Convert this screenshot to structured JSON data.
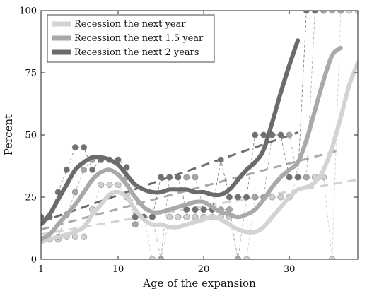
{
  "chart_data": {
    "type": "line",
    "xlabel": "Age of the expansion",
    "ylabel": "Percent",
    "xlim": [
      1,
      38
    ],
    "ylim": [
      0,
      100
    ],
    "x_ticks": [
      1,
      10,
      20,
      30
    ],
    "y_ticks": [
      0,
      25,
      50,
      75,
      100
    ],
    "legend_position": "top-left",
    "series": [
      {
        "name": "Recession the next year",
        "color": "#d3d3d3",
        "marker_color": "#d0d0d0",
        "trend_color": "#d3d3d3",
        "trend": [
          [
            1,
            10
          ],
          [
            38,
            32
          ]
        ],
        "smooth": [
          [
            1,
            7
          ],
          [
            3,
            9
          ],
          [
            5,
            11
          ],
          [
            6,
            13
          ],
          [
            7,
            18
          ],
          [
            8,
            22
          ],
          [
            9,
            26
          ],
          [
            10,
            27
          ],
          [
            11,
            25
          ],
          [
            12,
            20
          ],
          [
            13,
            16
          ],
          [
            14,
            14
          ],
          [
            15,
            14
          ],
          [
            16,
            13
          ],
          [
            17,
            13
          ],
          [
            18,
            14
          ],
          [
            19,
            15
          ],
          [
            20,
            16
          ],
          [
            21,
            17
          ],
          [
            22,
            16
          ],
          [
            23,
            14
          ],
          [
            24,
            12
          ],
          [
            25,
            11
          ],
          [
            26,
            11
          ],
          [
            27,
            13
          ],
          [
            28,
            17
          ],
          [
            29,
            21
          ],
          [
            30,
            25
          ],
          [
            31,
            28
          ],
          [
            32,
            29
          ],
          [
            33,
            31
          ],
          [
            34,
            36
          ],
          [
            35,
            45
          ],
          [
            36,
            57
          ],
          [
            37,
            70
          ],
          [
            38,
            79
          ]
        ],
        "points": [
          [
            1,
            8
          ],
          [
            2,
            8
          ],
          [
            3,
            8
          ],
          [
            4,
            9
          ],
          [
            5,
            9
          ],
          [
            6,
            9
          ],
          [
            7,
            20
          ],
          [
            8,
            30
          ],
          [
            9,
            30
          ],
          [
            10,
            30
          ],
          [
            11,
            25
          ],
          [
            12,
            17
          ],
          [
            13,
            17
          ],
          [
            14,
            0
          ],
          [
            15,
            0
          ],
          [
            16,
            17
          ],
          [
            17,
            17
          ],
          [
            18,
            17
          ],
          [
            19,
            17
          ],
          [
            20,
            17
          ],
          [
            21,
            17
          ],
          [
            22,
            17
          ],
          [
            23,
            17
          ],
          [
            24,
            0
          ],
          [
            25,
            0
          ],
          [
            26,
            25
          ],
          [
            27,
            25
          ],
          [
            28,
            25
          ],
          [
            29,
            25
          ],
          [
            30,
            25
          ],
          [
            31,
            33
          ],
          [
            32,
            33
          ],
          [
            33,
            33
          ],
          [
            34,
            33
          ],
          [
            35,
            0
          ],
          [
            36,
            100
          ],
          [
            37,
            100
          ],
          [
            38,
            100
          ]
        ]
      },
      {
        "name": "Recession the next 1.5 year",
        "color": "#a9a9a9",
        "marker_color": "#a6a6a6",
        "trend_color": "#a9a9a9",
        "trend": [
          [
            1,
            12
          ],
          [
            36,
            44
          ]
        ],
        "smooth": [
          [
            1,
            8
          ],
          [
            2,
            10
          ],
          [
            3,
            14
          ],
          [
            4,
            18
          ],
          [
            5,
            22
          ],
          [
            6,
            27
          ],
          [
            7,
            32
          ],
          [
            8,
            35
          ],
          [
            9,
            36
          ],
          [
            10,
            34
          ],
          [
            11,
            30
          ],
          [
            12,
            25
          ],
          [
            13,
            21
          ],
          [
            14,
            19
          ],
          [
            15,
            19
          ],
          [
            16,
            20
          ],
          [
            17,
            21
          ],
          [
            18,
            22
          ],
          [
            19,
            23
          ],
          [
            20,
            23
          ],
          [
            21,
            21
          ],
          [
            22,
            19
          ],
          [
            23,
            18
          ],
          [
            24,
            17
          ],
          [
            25,
            18
          ],
          [
            26,
            20
          ],
          [
            27,
            24
          ],
          [
            28,
            29
          ],
          [
            29,
            33
          ],
          [
            30,
            36
          ],
          [
            31,
            39
          ],
          [
            32,
            48
          ],
          [
            33,
            60
          ],
          [
            34,
            72
          ],
          [
            35,
            82
          ],
          [
            36,
            85
          ]
        ],
        "points": [
          [
            1,
            8
          ],
          [
            2,
            8
          ],
          [
            3,
            9
          ],
          [
            4,
            18
          ],
          [
            5,
            27
          ],
          [
            6,
            36
          ],
          [
            7,
            40
          ],
          [
            8,
            40
          ],
          [
            9,
            40
          ],
          [
            10,
            40
          ],
          [
            11,
            33
          ],
          [
            12,
            14
          ],
          [
            13,
            17
          ],
          [
            14,
            17
          ],
          [
            15,
            0
          ],
          [
            16,
            33
          ],
          [
            17,
            33
          ],
          [
            18,
            33
          ],
          [
            19,
            33
          ],
          [
            20,
            20
          ],
          [
            21,
            20
          ],
          [
            22,
            20
          ],
          [
            23,
            20
          ],
          [
            24,
            0
          ],
          [
            25,
            25
          ],
          [
            26,
            25
          ],
          [
            27,
            25
          ],
          [
            28,
            50
          ],
          [
            29,
            50
          ],
          [
            30,
            50
          ],
          [
            31,
            33
          ],
          [
            32,
            33
          ],
          [
            33,
            100
          ],
          [
            34,
            100
          ],
          [
            35,
            100
          ],
          [
            36,
            100
          ]
        ]
      },
      {
        "name": "Recession the next 2 years",
        "color": "#6b6b6b",
        "marker_color": "#707070",
        "trend_color": "#6b6b6b",
        "trend": [
          [
            1,
            15
          ],
          [
            31,
            51
          ]
        ],
        "smooth": [
          [
            1,
            14
          ],
          [
            2,
            18
          ],
          [
            3,
            24
          ],
          [
            4,
            30
          ],
          [
            5,
            36
          ],
          [
            6,
            39
          ],
          [
            7,
            41
          ],
          [
            8,
            41
          ],
          [
            9,
            40
          ],
          [
            10,
            38
          ],
          [
            11,
            34
          ],
          [
            12,
            30
          ],
          [
            13,
            28
          ],
          [
            14,
            27
          ],
          [
            15,
            27
          ],
          [
            16,
            28
          ],
          [
            17,
            28
          ],
          [
            18,
            28
          ],
          [
            19,
            27
          ],
          [
            20,
            27
          ],
          [
            21,
            26
          ],
          [
            22,
            26
          ],
          [
            23,
            28
          ],
          [
            24,
            32
          ],
          [
            25,
            36
          ],
          [
            26,
            39
          ],
          [
            27,
            44
          ],
          [
            28,
            55
          ],
          [
            29,
            67
          ],
          [
            30,
            78
          ],
          [
            31,
            88
          ]
        ],
        "points": [
          [
            1,
            17
          ],
          [
            2,
            17
          ],
          [
            3,
            27
          ],
          [
            4,
            36
          ],
          [
            5,
            45
          ],
          [
            6,
            45
          ],
          [
            7,
            36
          ],
          [
            8,
            40
          ],
          [
            9,
            40
          ],
          [
            10,
            40
          ],
          [
            11,
            37
          ],
          [
            12,
            17
          ],
          [
            13,
            17
          ],
          [
            14,
            17
          ],
          [
            15,
            33
          ],
          [
            16,
            33
          ],
          [
            17,
            33
          ],
          [
            18,
            20
          ],
          [
            19,
            20
          ],
          [
            20,
            20
          ],
          [
            21,
            20
          ],
          [
            22,
            40
          ],
          [
            23,
            25
          ],
          [
            24,
            25
          ],
          [
            25,
            25
          ],
          [
            26,
            50
          ],
          [
            27,
            50
          ],
          [
            28,
            50
          ],
          [
            29,
            50
          ],
          [
            30,
            33
          ],
          [
            31,
            33
          ],
          [
            32,
            100
          ],
          [
            33,
            100
          ]
        ]
      }
    ]
  }
}
